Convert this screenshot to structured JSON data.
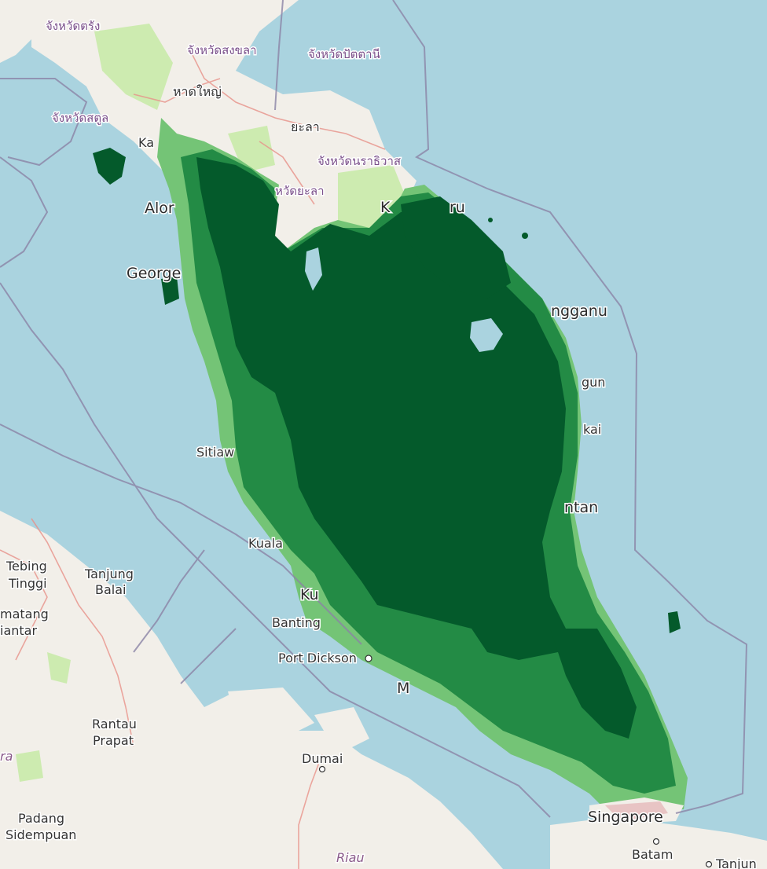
{
  "map": {
    "colors": {
      "water": "#aad3df",
      "land": "#f2efe9",
      "forest_dense": "#045a2b",
      "forest_mid": "#238b45",
      "forest_light": "#74c476",
      "forest_pale": "#c7e9c0",
      "park": "#cdebb0",
      "boundary": "#8b84a6",
      "road": "#e8928a"
    },
    "labels": {
      "trang": "จังหวัดตรัง",
      "songkhla": "จังหวัดสงขลา",
      "pattani": "จังหวัดปัตตานี",
      "hatyai": "หาดใหญ่",
      "satun": "จังหวัดสตูล",
      "yala_town": "ยะลา",
      "narathiwat": "จังหวัดนราธิวาส",
      "yala_prov": "หวัดยะลา",
      "kangar": "Ka",
      "alor": "Alor",
      "george": "George",
      "kota_bharu": "K",
      "kota_bharu_tail": "ru",
      "terengganu": "ngganu",
      "dungun": "gun",
      "kertih": "kai",
      "kuantan": "ntan",
      "sitiawan": "Sitiaw",
      "kuala": "Kuala",
      "klang": "Ku",
      "banting": "Banting",
      "port_dickson": "Port Dickson",
      "melaka": "M",
      "tebing_tinggi_1": "Tebing",
      "tebing_tinggi_2": "Tinggi",
      "tanjung_balai_1": "Tanjung",
      "tanjung_balai_2": "Balai",
      "pematang_1": "matang",
      "pematang_2": "iantar",
      "rantau_1": "Rantau",
      "rantau_2": "Prapat",
      "dumai": "Dumai",
      "padang_1": "Padang",
      "padang_2": "Sidempuan",
      "riau": "Riau",
      "ra": "ra",
      "singapore": "Singapore",
      "batam": "Batam",
      "tanjung_pinang": "Tanjun"
    }
  }
}
